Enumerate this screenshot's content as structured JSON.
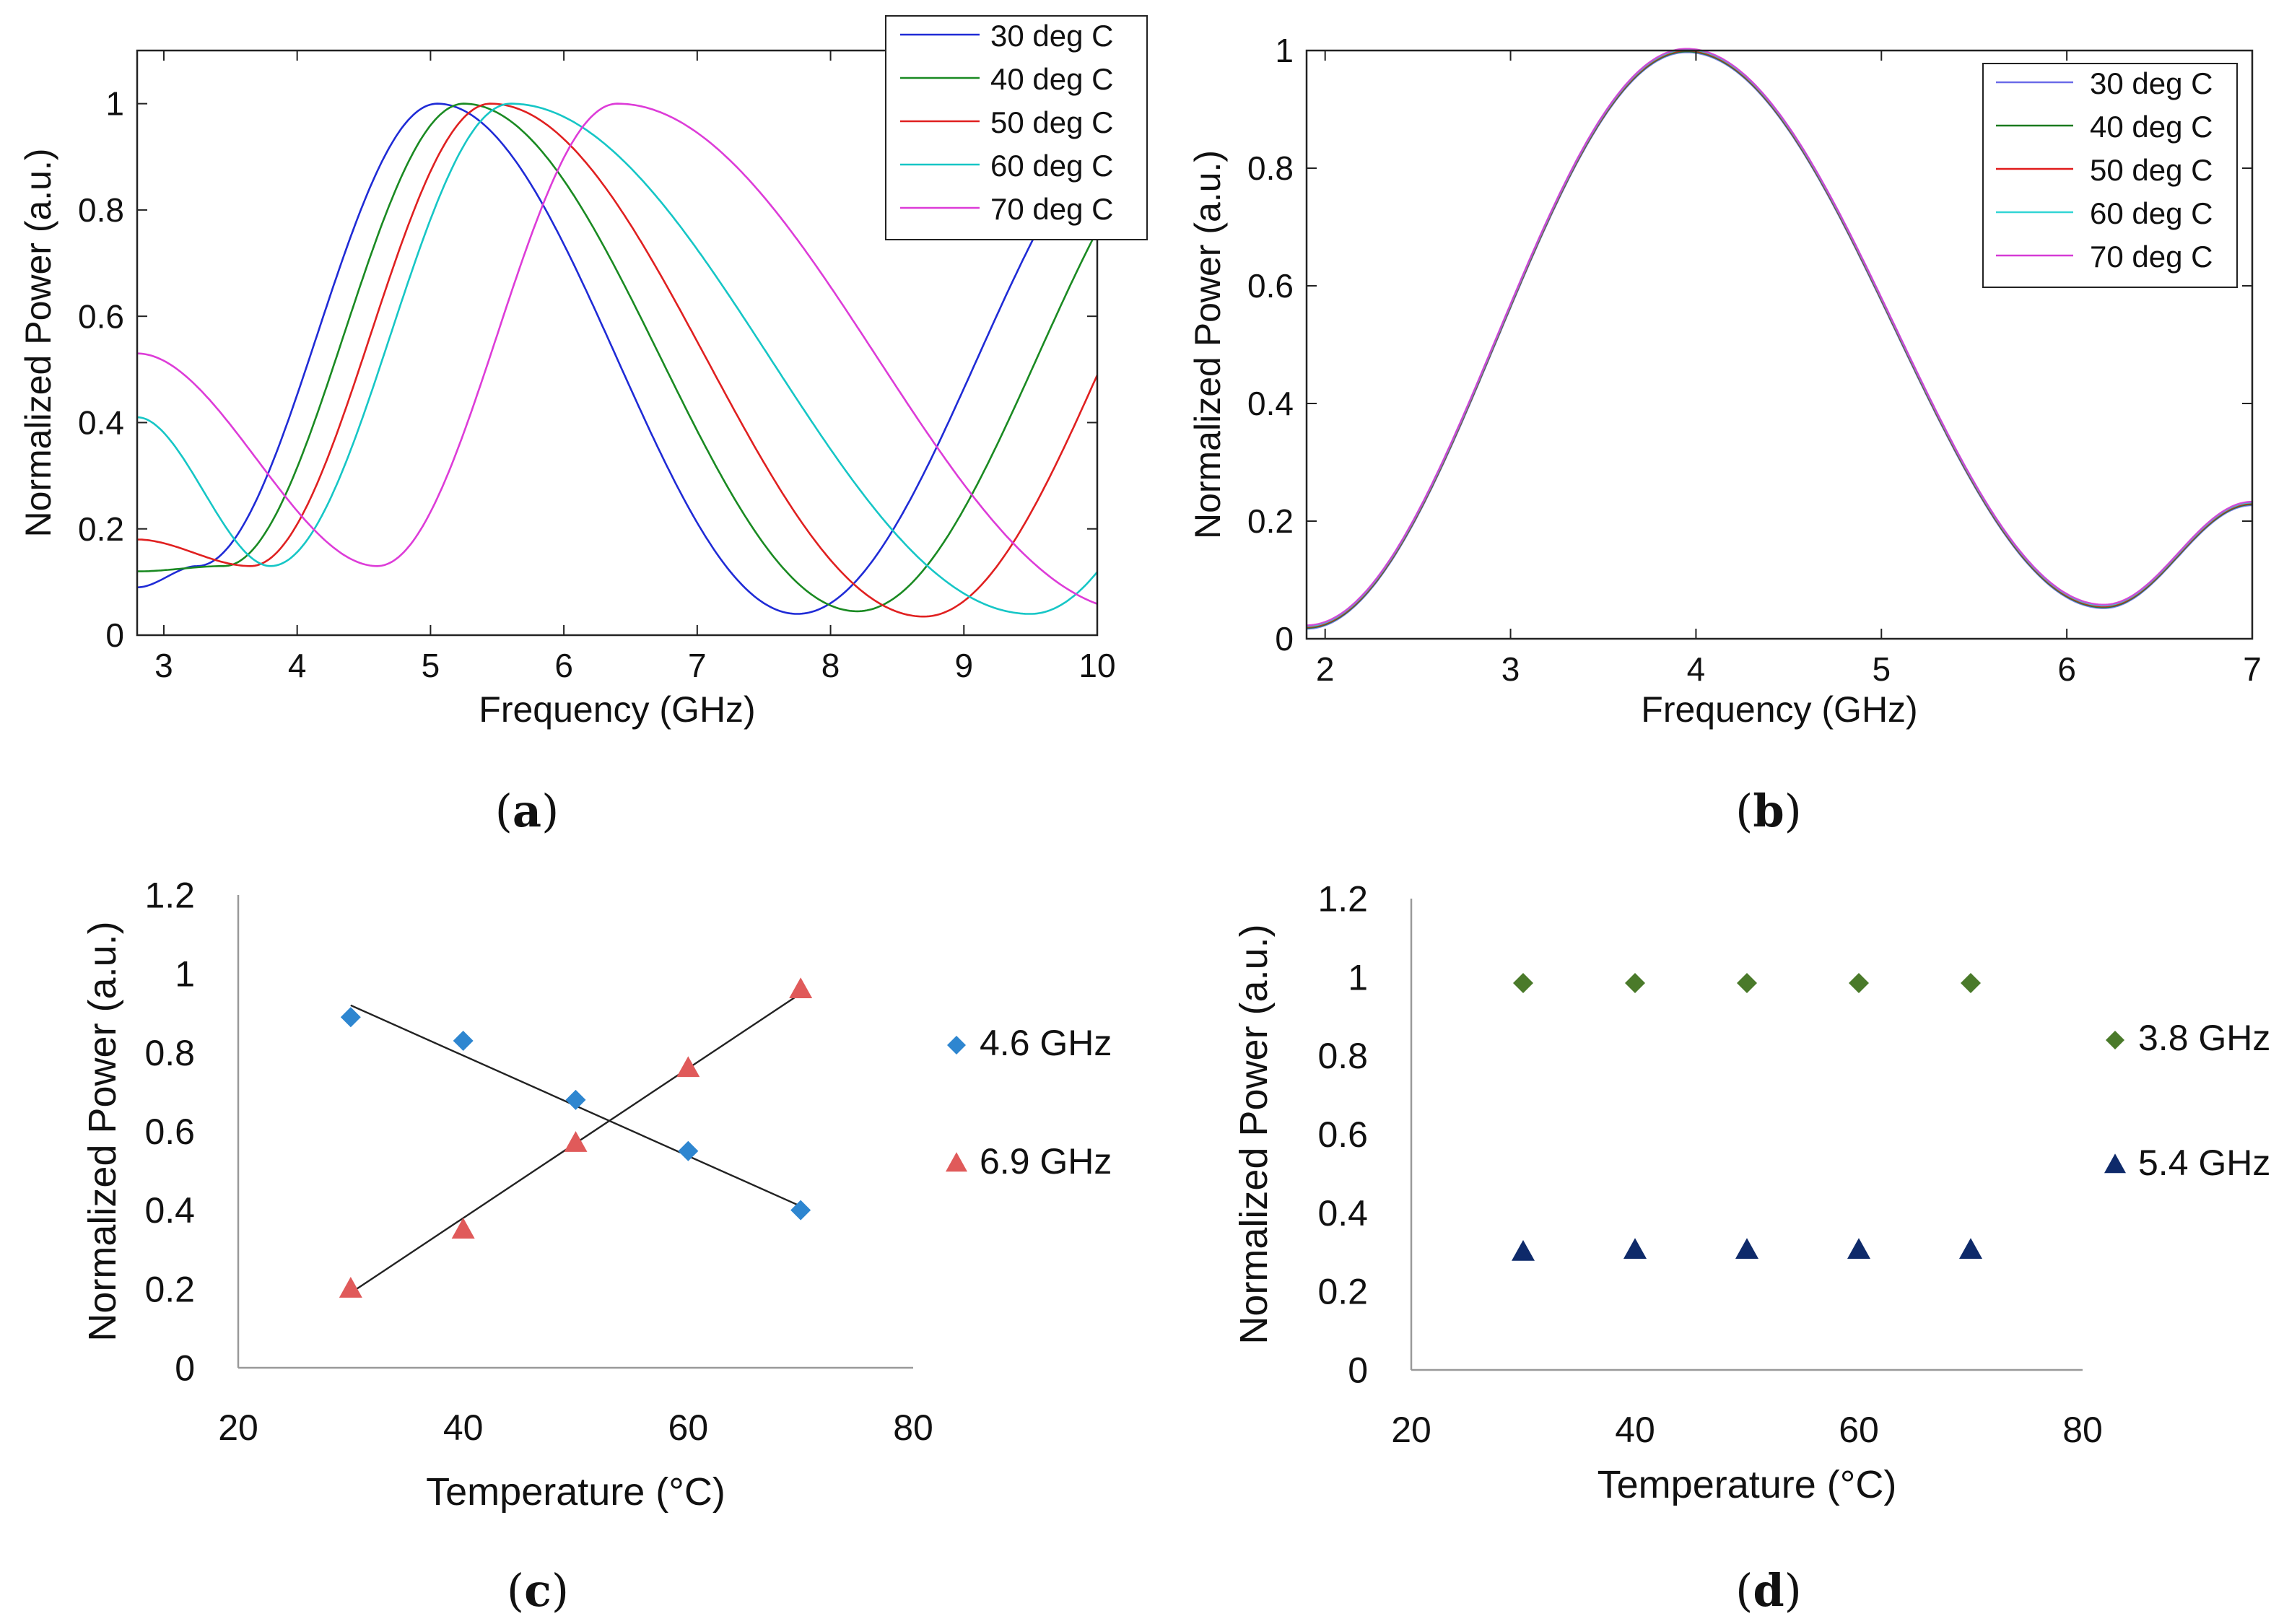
{
  "chart_data": [
    {
      "id": "a",
      "type": "line",
      "caption_letter": "a",
      "xlabel": "Frequency (GHz)",
      "ylabel": "Normalized Power (a.u.)",
      "xlim": [
        2.8,
        10
      ],
      "ylim": [
        0,
        1.1
      ],
      "xticks": [
        3,
        4,
        5,
        6,
        7,
        8,
        9,
        10
      ],
      "yticks": [
        0,
        0.2,
        0.4,
        0.6,
        0.8,
        1
      ],
      "ytick_labels": [
        "0",
        "0.2",
        "0.4",
        "0.6",
        "0.8",
        "1"
      ],
      "legend_position": "top-right",
      "series": [
        {
          "name": "30 deg C",
          "color": "#1f2bd6",
          "peak": 5.05,
          "width": 0.92,
          "trough": 7.75,
          "tw": 0.8,
          "base": 0.04,
          "left_val": 0.09
        },
        {
          "name": "40 deg C",
          "color": "#1a8a22",
          "peak": 5.25,
          "width": 0.95,
          "trough": 8.2,
          "tw": 0.8,
          "base": 0.045,
          "left_val": 0.12
        },
        {
          "name": "50 deg C",
          "color": "#e02020",
          "peak": 5.45,
          "width": 0.95,
          "trough": 8.7,
          "tw": 0.8,
          "base": 0.035,
          "left_val": 0.18
        },
        {
          "name": "60 deg C",
          "color": "#16c6c6",
          "peak": 5.6,
          "width": 1.05,
          "trough": 9.5,
          "tw": 0.8,
          "base": 0.04,
          "left_val": 0.41
        },
        {
          "name": "70 deg C",
          "color": "#dd3cd8",
          "peak": 6.4,
          "width": 1.25,
          "trough": 10.3,
          "tw": 0.8,
          "base": 0.045,
          "left_val": 0.53
        }
      ]
    },
    {
      "id": "b",
      "type": "line",
      "caption_letter": "b",
      "xlabel": "Frequency (GHz)",
      "ylabel": "Normalized Power (a.u.)",
      "xlim": [
        1.9,
        7
      ],
      "ylim": [
        0,
        1
      ],
      "xticks": [
        2,
        3,
        4,
        5,
        6,
        7
      ],
      "yticks": [
        0,
        0.2,
        0.4,
        0.6,
        0.8,
        1
      ],
      "ytick_labels": [
        "0",
        "0.2",
        "0.4",
        "0.6",
        "0.8",
        "1"
      ],
      "legend_position": "top-right",
      "curve": {
        "peak": 3.95,
        "trough": 6.2,
        "min": 0.055,
        "start": 0.02,
        "end": 0.23
      },
      "series": [
        {
          "name": "30 deg C",
          "color": "#6b6be8"
        },
        {
          "name": "40 deg C",
          "color": "#1a7a1f"
        },
        {
          "name": "50 deg C",
          "color": "#e01b1b"
        },
        {
          "name": "60 deg C",
          "color": "#33d5d5"
        },
        {
          "name": "70 deg C",
          "color": "#d63ad6"
        }
      ]
    },
    {
      "id": "c",
      "type": "scatter",
      "caption_letter": "c",
      "xlabel": "Temperature (°C)",
      "ylabel": "Normalized Power (a.u.)",
      "xlim": [
        20,
        80
      ],
      "ylim": [
        0,
        1.2
      ],
      "xticks": [
        20,
        40,
        60,
        80
      ],
      "yticks": [
        0,
        0.2,
        0.4,
        0.6,
        0.8,
        1,
        1.2
      ],
      "ytick_labels": [
        "0",
        "0.2",
        "0.4",
        "0.6",
        "0.8",
        "1",
        "1.2"
      ],
      "legend_position": "right",
      "series": [
        {
          "name": "4.6 GHz",
          "marker": "diamond",
          "color": "#2e86d0",
          "x": [
            30,
            40,
            50,
            60,
            70
          ],
          "y": [
            0.89,
            0.83,
            0.68,
            0.55,
            0.4
          ],
          "trend": [
            [
              30,
              0.92
            ],
            [
              70,
              0.41
            ]
          ]
        },
        {
          "name": "6.9 GHz",
          "marker": "triangle",
          "color": "#e05a5a",
          "x": [
            30,
            40,
            50,
            60,
            70
          ],
          "y": [
            0.2,
            0.35,
            0.57,
            0.76,
            0.96
          ],
          "trend": [
            [
              30,
              0.19
            ],
            [
              70,
              0.95
            ]
          ]
        }
      ]
    },
    {
      "id": "d",
      "type": "scatter",
      "caption_letter": "d",
      "xlabel": "Temperature (°C)",
      "ylabel": "Normalized Power (a.u.)",
      "xlim": [
        20,
        80
      ],
      "ylim": [
        0,
        1.2
      ],
      "xticks": [
        20,
        40,
        60,
        80
      ],
      "yticks": [
        0,
        0.2,
        0.4,
        0.6,
        0.8,
        1,
        1.2
      ],
      "ytick_labels": [
        "0",
        "0.2",
        "0.4",
        "0.6",
        "0.8",
        "1",
        "1.2"
      ],
      "legend_position": "right",
      "series": [
        {
          "name": "3.8 GHz",
          "marker": "diamond",
          "color": "#4a7a2a",
          "x": [
            30,
            40,
            50,
            60,
            70
          ],
          "y": [
            0.985,
            0.985,
            0.985,
            0.985,
            0.985
          ]
        },
        {
          "name": "5.4 GHz",
          "marker": "triangle",
          "color": "#0e2a6a",
          "x": [
            30,
            40,
            50,
            60,
            70
          ],
          "y": [
            0.3,
            0.305,
            0.305,
            0.305,
            0.305
          ]
        }
      ]
    }
  ]
}
